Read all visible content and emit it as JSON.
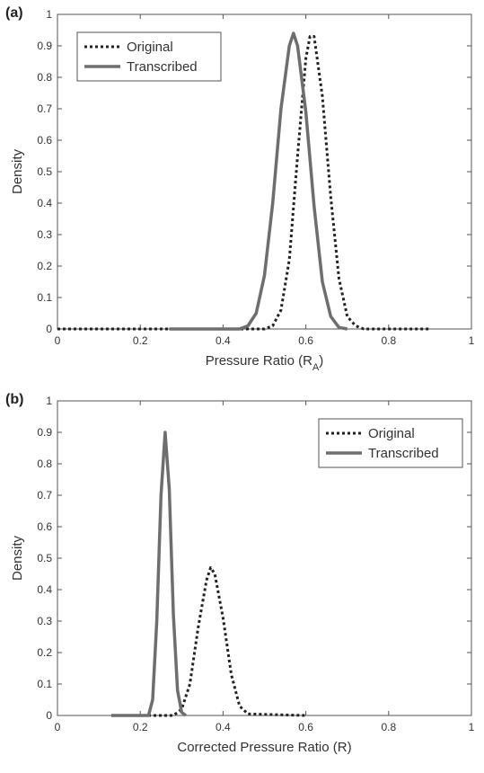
{
  "panels": [
    {
      "label": "(a)"
    },
    {
      "label": "(b)"
    }
  ],
  "chart_data": [
    {
      "type": "line",
      "panel": "(a)",
      "xlabel": "Pressure Ratio (R",
      "xlabel_sub": "A",
      "xlabel_close": ")",
      "ylabel": "Density",
      "xlim": [
        0,
        1
      ],
      "ylim": [
        0,
        1
      ],
      "x_ticks": [
        "0",
        "0.2",
        "0.4",
        "0.6",
        "0.8",
        "1"
      ],
      "y_ticks": [
        "0",
        "0.1",
        "0.2",
        "0.3",
        "0.4",
        "0.5",
        "0.6",
        "0.7",
        "0.8",
        "0.9",
        "1"
      ],
      "grid": false,
      "legend": "top-left",
      "series": [
        {
          "name": "Original",
          "style": "dotted",
          "color": "#222222",
          "x": [
            0.0,
            0.5,
            0.52,
            0.54,
            0.56,
            0.58,
            0.6,
            0.61,
            0.62,
            0.64,
            0.66,
            0.68,
            0.7,
            0.72,
            0.74,
            0.9
          ],
          "y": [
            0,
            0,
            0.01,
            0.06,
            0.22,
            0.55,
            0.86,
            0.93,
            0.93,
            0.74,
            0.42,
            0.16,
            0.04,
            0.01,
            0,
            0
          ]
        },
        {
          "name": "Transcribed",
          "style": "solid",
          "color": "#6e6e6e",
          "x": [
            0.27,
            0.44,
            0.46,
            0.48,
            0.5,
            0.52,
            0.54,
            0.56,
            0.57,
            0.58,
            0.6,
            0.62,
            0.64,
            0.66,
            0.68,
            0.7
          ],
          "y": [
            0,
            0,
            0.01,
            0.05,
            0.17,
            0.4,
            0.7,
            0.9,
            0.94,
            0.9,
            0.69,
            0.39,
            0.15,
            0.04,
            0.005,
            0
          ]
        }
      ]
    },
    {
      "type": "line",
      "panel": "(b)",
      "xlabel": "Corrected Pressure Ratio (R)",
      "xlabel_sub": "",
      "xlabel_close": "",
      "ylabel": "Density",
      "xlim": [
        0,
        1
      ],
      "ylim": [
        0,
        1
      ],
      "x_ticks": [
        "0",
        "0.2",
        "0.4",
        "0.6",
        "0.8",
        "1"
      ],
      "y_ticks": [
        "0",
        "0.1",
        "0.2",
        "0.3",
        "0.4",
        "0.5",
        "0.6",
        "0.7",
        "0.8",
        "0.9",
        "1"
      ],
      "grid": false,
      "legend": "top-right",
      "series": [
        {
          "name": "Original",
          "style": "dotted",
          "color": "#222222",
          "x": [
            0.18,
            0.28,
            0.3,
            0.32,
            0.34,
            0.36,
            0.37,
            0.38,
            0.4,
            0.42,
            0.44,
            0.46,
            0.6
          ],
          "y": [
            0,
            0,
            0.02,
            0.1,
            0.28,
            0.43,
            0.47,
            0.45,
            0.31,
            0.13,
            0.03,
            0.005,
            0
          ]
        },
        {
          "name": "Transcribed",
          "style": "solid",
          "color": "#6e6e6e",
          "x": [
            0.13,
            0.22,
            0.23,
            0.24,
            0.25,
            0.26,
            0.27,
            0.28,
            0.29,
            0.3,
            0.31
          ],
          "y": [
            0,
            0,
            0.05,
            0.3,
            0.7,
            0.9,
            0.72,
            0.32,
            0.08,
            0.01,
            0
          ]
        }
      ]
    }
  ]
}
